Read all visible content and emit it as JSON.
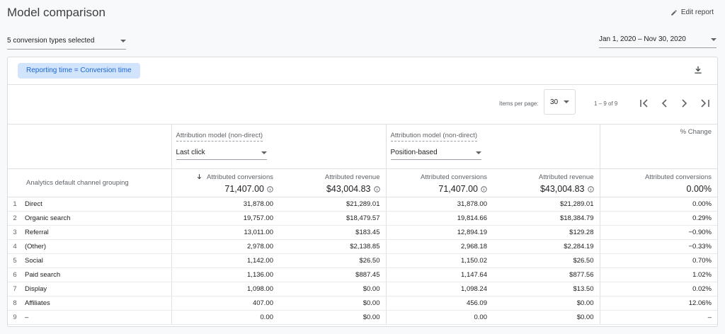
{
  "header": {
    "title": "Model comparison",
    "edit_report": "Edit report"
  },
  "filters": {
    "conversion_types": "5 conversion types selected",
    "date_range": "Jan 1, 2020 – Nov 30, 2020"
  },
  "chip": "Reporting time = Conversion time",
  "pagination": {
    "items_per_page_label": "Items per page:",
    "items_per_page": "30",
    "range": "1 – 9 of 9"
  },
  "models": [
    {
      "label": "Attribution model (non-direct)",
      "selected": "Last click"
    },
    {
      "label": "Attribution model (non-direct)",
      "selected": "Position-based"
    }
  ],
  "percent_change": "% Change",
  "table": {
    "dimension_header": "Analytics default channel grouping",
    "metric_headers": [
      "Attributed conversions",
      "Attributed revenue",
      "Attributed conversions",
      "Attributed revenue",
      "Attributed conversions"
    ],
    "totals": [
      "71,407.00",
      "$43,004.83",
      "71,407.00",
      "$43,004.83",
      "0.00%"
    ],
    "rows": [
      [
        "1",
        "Direct",
        "31,878.00",
        "$21,289.01",
        "31,878.00",
        "$21,289.01",
        "0.00%"
      ],
      [
        "2",
        "Organic search",
        "19,757.00",
        "$18,479.57",
        "19,814.66",
        "$18,384.79",
        "0.29%"
      ],
      [
        "3",
        "Referral",
        "13,011.00",
        "$183.45",
        "12,894.19",
        "$129.28",
        "−0.90%"
      ],
      [
        "4",
        "(Other)",
        "2,978.00",
        "$2,138.85",
        "2,968.18",
        "$2,284.19",
        "−0.33%"
      ],
      [
        "5",
        "Social",
        "1,142.00",
        "$26.50",
        "1,150.02",
        "$26.50",
        "0.70%"
      ],
      [
        "6",
        "Paid search",
        "1,136.00",
        "$887.45",
        "1,147.64",
        "$877.56",
        "1.02%"
      ],
      [
        "7",
        "Display",
        "1,098.00",
        "$0.00",
        "1,098.24",
        "$13.50",
        "0.02%"
      ],
      [
        "8",
        "Affiliates",
        "407.00",
        "$0.00",
        "456.09",
        "$0.00",
        "12.06%"
      ],
      [
        "9",
        "–",
        "0.00",
        "$0.00",
        "0.00",
        "$0.00",
        "–"
      ]
    ]
  }
}
